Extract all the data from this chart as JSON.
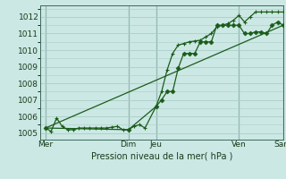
{
  "xlabel": "Pression niveau de la mer( hPa )",
  "bg_color": "#cce8e4",
  "grid_color": "#aaccc8",
  "line_color": "#1a5c1a",
  "vline_color": "#2a5a4a",
  "ylim": [
    1004.6,
    1012.7
  ],
  "xlim": [
    0,
    22
  ],
  "yticks": [
    1005,
    1006,
    1007,
    1008,
    1009,
    1010,
    1011,
    1012
  ],
  "day_ticks_x": [
    0.5,
    8.0,
    10.5,
    18.0,
    22.0
  ],
  "day_labels": [
    "Mer",
    "Dim",
    "Jeu",
    "Ven",
    "Sam"
  ],
  "vlines_x": [
    0.5,
    8.0,
    10.5,
    18.0,
    22.0
  ],
  "series1_x": [
    0.5,
    1.0,
    1.5,
    2.0,
    2.5,
    3.0,
    3.5,
    4.0,
    4.5,
    5.0,
    5.5,
    6.0,
    6.5,
    7.0,
    7.5,
    8.0,
    8.5,
    9.0,
    9.5,
    10.5,
    11.0,
    11.5,
    12.0,
    12.5,
    13.0,
    13.5,
    14.0,
    14.5,
    15.0,
    15.5,
    16.0,
    16.5,
    17.0,
    17.5,
    18.0,
    18.5,
    19.0,
    19.5,
    20.0,
    20.5,
    21.0,
    21.5,
    22.0
  ],
  "series1_y": [
    1005.3,
    1005.1,
    1005.9,
    1005.4,
    1005.2,
    1005.2,
    1005.3,
    1005.3,
    1005.3,
    1005.3,
    1005.3,
    1005.3,
    1005.35,
    1005.4,
    1005.2,
    1005.2,
    1005.4,
    1005.5,
    1005.3,
    1006.6,
    1007.5,
    1008.8,
    1009.8,
    1010.3,
    1010.4,
    1010.5,
    1010.55,
    1010.6,
    1010.8,
    1011.0,
    1011.4,
    1011.5,
    1011.6,
    1011.8,
    1012.1,
    1011.7,
    1012.0,
    1012.3,
    1012.3,
    1012.3,
    1012.3,
    1012.3,
    1012.3
  ],
  "series2_x": [
    0.5,
    8.0,
    10.5,
    11.0,
    11.5,
    12.0,
    12.5,
    13.0,
    13.5,
    14.0,
    14.5,
    15.0,
    15.5,
    16.0,
    16.5,
    17.0,
    17.5,
    18.0,
    18.5,
    19.0,
    19.5,
    20.0,
    20.5,
    21.0,
    21.5,
    22.0
  ],
  "series2_y": [
    1005.3,
    1005.2,
    1006.6,
    1007.0,
    1007.5,
    1007.5,
    1008.9,
    1009.8,
    1009.8,
    1009.8,
    1010.5,
    1010.5,
    1010.5,
    1011.5,
    1011.5,
    1011.5,
    1011.5,
    1011.5,
    1011.0,
    1011.0,
    1011.1,
    1011.1,
    1011.0,
    1011.5,
    1011.7,
    1011.5
  ],
  "trend_x": [
    0.5,
    22.0
  ],
  "trend_y": [
    1005.3,
    1011.5
  ]
}
